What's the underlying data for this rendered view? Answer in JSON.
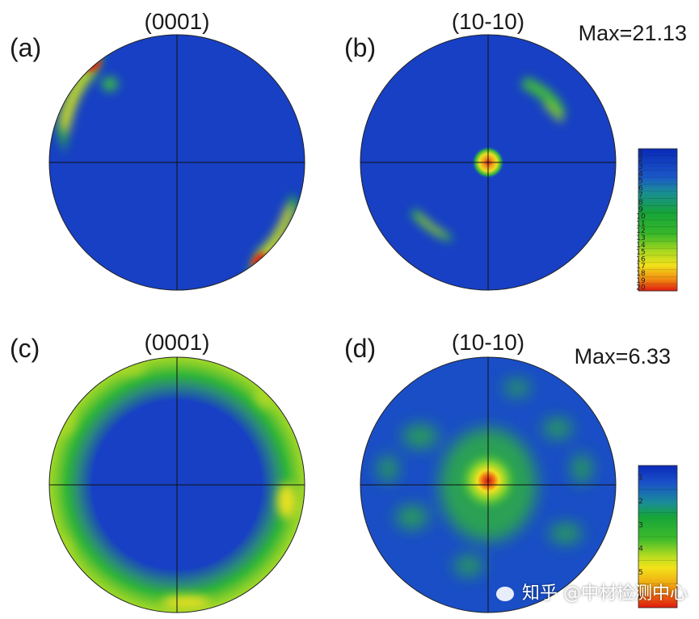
{
  "chart_data": [
    {
      "type": "heatmap",
      "panel": "(a)",
      "title": "(0001)",
      "plot": "pole figure",
      "colormap": [
        "#0b2fbf",
        "#1e5fd0",
        "#1fa54a",
        "#9bd418",
        "#f2e21a",
        "#f08a10",
        "#e02010"
      ],
      "features": [
        {
          "region": "upper-left rim",
          "intensity": 20
        },
        {
          "region": "lower-right rim",
          "intensity": 20
        }
      ]
    },
    {
      "type": "heatmap",
      "panel": "(b)",
      "title": "(10-10)",
      "max_label": "Max=21.13",
      "max": 21.13,
      "features": [
        {
          "region": "center",
          "intensity": 20
        },
        {
          "region": "upper-right arc",
          "intensity": 12
        },
        {
          "region": "lower-left arc",
          "intensity": 11
        }
      ],
      "colorbar": {
        "ticks": [
          "1",
          "2",
          "3",
          "4",
          "5",
          "6",
          "7",
          "8",
          "9",
          "10",
          "11",
          "12",
          "13",
          "14",
          "15",
          "16",
          "17",
          "18",
          "19",
          "20"
        ]
      }
    },
    {
      "type": "heatmap",
      "panel": "(c)",
      "title": "(0001)",
      "features": [
        {
          "region": "outer ring",
          "intensity": 4
        }
      ]
    },
    {
      "type": "heatmap",
      "panel": "(d)",
      "title": "(10-10)",
      "max_label": "Max=6.33",
      "max": 6.33,
      "features": [
        {
          "region": "center",
          "intensity": 6.33
        },
        {
          "region": "surrounding ring",
          "intensity": 2
        }
      ],
      "colorbar": {
        "ticks": [
          "1",
          "2",
          "3",
          "4",
          "5",
          "6"
        ]
      }
    }
  ],
  "watermark": "知乎 @中材检测中心"
}
